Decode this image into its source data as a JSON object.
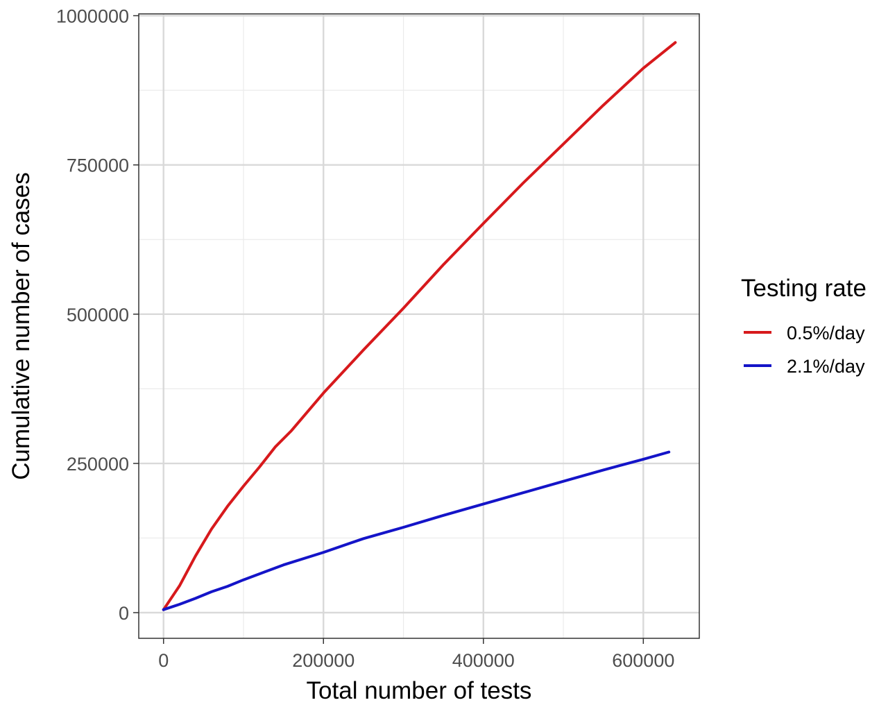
{
  "chart_data": {
    "type": "line",
    "xlabel": "Total number of tests",
    "ylabel": "Cumulative number of cases",
    "xlim": [
      -31000,
      670000
    ],
    "ylim": [
      -43000,
      1003000
    ],
    "x_ticks": [
      0,
      200000,
      400000,
      600000
    ],
    "x_tick_labels": [
      "0",
      "200000",
      "400000",
      "600000"
    ],
    "x_minor_ticks": [
      100000,
      300000,
      500000
    ],
    "y_ticks": [
      0,
      250000,
      500000,
      750000,
      1000000
    ],
    "y_tick_labels": [
      "0",
      "250000",
      "500000",
      "750000",
      "1000000"
    ],
    "y_minor_ticks": [
      125000,
      375000,
      625000,
      875000
    ],
    "grid": true,
    "legend": {
      "title": "Testing rate",
      "position": "right"
    },
    "series": [
      {
        "name": "0.5%/day",
        "color": "#d7191c",
        "x": [
          0,
          20000,
          40000,
          60000,
          80000,
          100000,
          120000,
          140000,
          160000,
          200000,
          250000,
          300000,
          350000,
          400000,
          450000,
          500000,
          550000,
          600000,
          640000
        ],
        "y": [
          5000,
          45000,
          95000,
          140000,
          178000,
          212000,
          244000,
          278000,
          305000,
          368000,
          440000,
          510000,
          583000,
          652000,
          720000,
          785000,
          850000,
          912000,
          955000
        ]
      },
      {
        "name": "2.1%/day",
        "color": "#1414c8",
        "x": [
          0,
          20000,
          40000,
          60000,
          80000,
          100000,
          150000,
          200000,
          250000,
          300000,
          350000,
          400000,
          450000,
          500000,
          550000,
          600000,
          632000
        ],
        "y": [
          5000,
          14000,
          24000,
          35000,
          44000,
          55000,
          80000,
          101000,
          124000,
          143000,
          163000,
          182000,
          201000,
          220000,
          239000,
          257000,
          269000
        ]
      }
    ]
  }
}
